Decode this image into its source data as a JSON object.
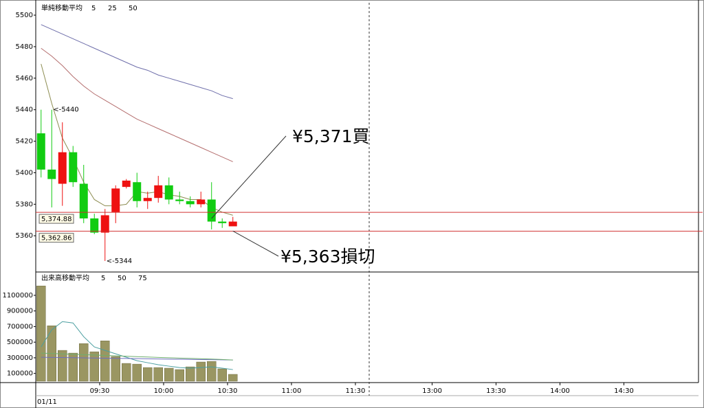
{
  "chart_data": [
    {
      "type": "candlestick",
      "title": "単純移動平均",
      "x": [
        0,
        5,
        10,
        15,
        20,
        25,
        30,
        35,
        40,
        45,
        50,
        55,
        60,
        65,
        70,
        75,
        80,
        85,
        90
      ],
      "open": [
        5425,
        5402,
        5393,
        5413,
        5393,
        5371,
        5362,
        5375,
        5391,
        5394,
        5382,
        5384,
        5392,
        5383,
        5382,
        5380,
        5383,
        5369,
        5366
      ],
      "high": [
        5440,
        5440,
        5432,
        5417,
        5405,
        5374,
        5377,
        5392,
        5396,
        5400,
        5388,
        5398,
        5397,
        5388,
        5385,
        5388,
        5394,
        5371,
        5372
      ],
      "low": [
        5397,
        5378,
        5379,
        5391,
        5368,
        5361,
        5344,
        5368,
        5390,
        5378,
        5377,
        5381,
        5380,
        5380,
        5378,
        5378,
        5364,
        5365,
        5366
      ],
      "close": [
        5402,
        5396,
        5413,
        5394,
        5371,
        5362,
        5373,
        5390,
        5395,
        5382,
        5384,
        5392,
        5383,
        5382,
        5380,
        5383,
        5369,
        5368,
        5369
      ],
      "up_color": "#ee1111",
      "down_color": "#11cc11",
      "xlim": [
        0,
        311
      ],
      "ylim": [
        5337,
        5507
      ],
      "yticks": [
        5360,
        5380,
        5400,
        5420,
        5440,
        5460,
        5480,
        5500
      ],
      "series": [
        {
          "name": "5",
          "color": "#8c8c50",
          "values": [
            5469,
            5444,
            5422,
            5409,
            5394,
            5383,
            5379,
            5379,
            5380,
            5388,
            5387,
            5388,
            5386,
            5385,
            5383,
            5383,
            5378,
            5375,
            5373
          ]
        },
        {
          "name": "25",
          "color": "#b46e6e",
          "values": [
            5479,
            5474,
            5468,
            5461,
            5455,
            5450,
            5446,
            5442,
            5438,
            5434,
            5431,
            5428,
            5425,
            5422,
            5419,
            5416,
            5413,
            5410,
            5407
          ]
        },
        {
          "name": "50",
          "color": "#6e6eaa",
          "values": [
            5494,
            5491,
            5488,
            5485,
            5482,
            5479,
            5476,
            5473,
            5470,
            5467,
            5465,
            5462,
            5460,
            5458,
            5456,
            5454,
            5452,
            5449,
            5447
          ]
        }
      ],
      "levels": [
        {
          "value": 5374.88,
          "label": "5,374.88"
        },
        {
          "value": 5362.86,
          "label": "5,362.86"
        }
      ],
      "annotations": [
        {
          "value": 5371,
          "text": "¥5,371買"
        },
        {
          "value": 5363,
          "text": "¥5,363損切"
        }
      ],
      "extremes": [
        {
          "x": 5,
          "value": 5440,
          "label": "<-5440",
          "color": "#ee1111"
        },
        {
          "x": 30,
          "value": 5344,
          "label": "<-5344",
          "color": "#11aa11"
        }
      ]
    },
    {
      "type": "bar",
      "title": "出来高移動平均",
      "x": [
        0,
        5,
        10,
        15,
        20,
        25,
        30,
        35,
        40,
        45,
        50,
        55,
        60,
        65,
        70,
        75,
        80,
        85,
        90
      ],
      "values": [
        1220000,
        710000,
        395000,
        360000,
        482000,
        377000,
        517000,
        316000,
        228000,
        219000,
        175000,
        175000,
        167000,
        149000,
        184000,
        246000,
        254000,
        158000,
        88000
      ],
      "color": "#9a9662",
      "xlim": [
        0,
        311
      ],
      "ylim": [
        0,
        1390000
      ],
      "yticks": [
        100000,
        300000,
        500000,
        700000,
        900000,
        1100000
      ],
      "xticks": [
        {
          "value": 30,
          "label": "09:30"
        },
        {
          "value": 60,
          "label": "10:00"
        },
        {
          "value": 90,
          "label": "10:30"
        },
        {
          "value": 120,
          "label": "11:00"
        },
        {
          "value": 150,
          "label": "11:30"
        },
        {
          "value": 186,
          "label": "13:00"
        },
        {
          "value": 216,
          "label": "13:30"
        },
        {
          "value": 246,
          "label": "14:00"
        },
        {
          "value": 276,
          "label": "14:30"
        }
      ],
      "date": "01/11",
      "series": [
        {
          "name": "5",
          "color": "#4a9ea0",
          "values": [
            439000,
            658000,
            763000,
            746000,
            570000,
            439000,
            395000,
            351000,
            307000,
            263000,
            237000,
            211000,
            193000,
            175000,
            167000,
            175000,
            184000,
            167000,
            149000
          ]
        },
        {
          "name": "50",
          "color": "#6e6ebe",
          "values": [
            307000,
            305000,
            303000,
            301000,
            299000,
            297000,
            295000,
            293000,
            291000,
            289000,
            287000,
            285000,
            283000,
            281000,
            279000,
            277000,
            276000,
            274000,
            272000
          ]
        },
        {
          "name": "75",
          "color": "#6eae6e",
          "values": [
            360000,
            355000,
            350000,
            345000,
            340000,
            335000,
            330000,
            325000,
            320000,
            315000,
            310000,
            305000,
            300000,
            296000,
            292000,
            288000,
            284000,
            278000,
            272000
          ]
        }
      ]
    }
  ]
}
